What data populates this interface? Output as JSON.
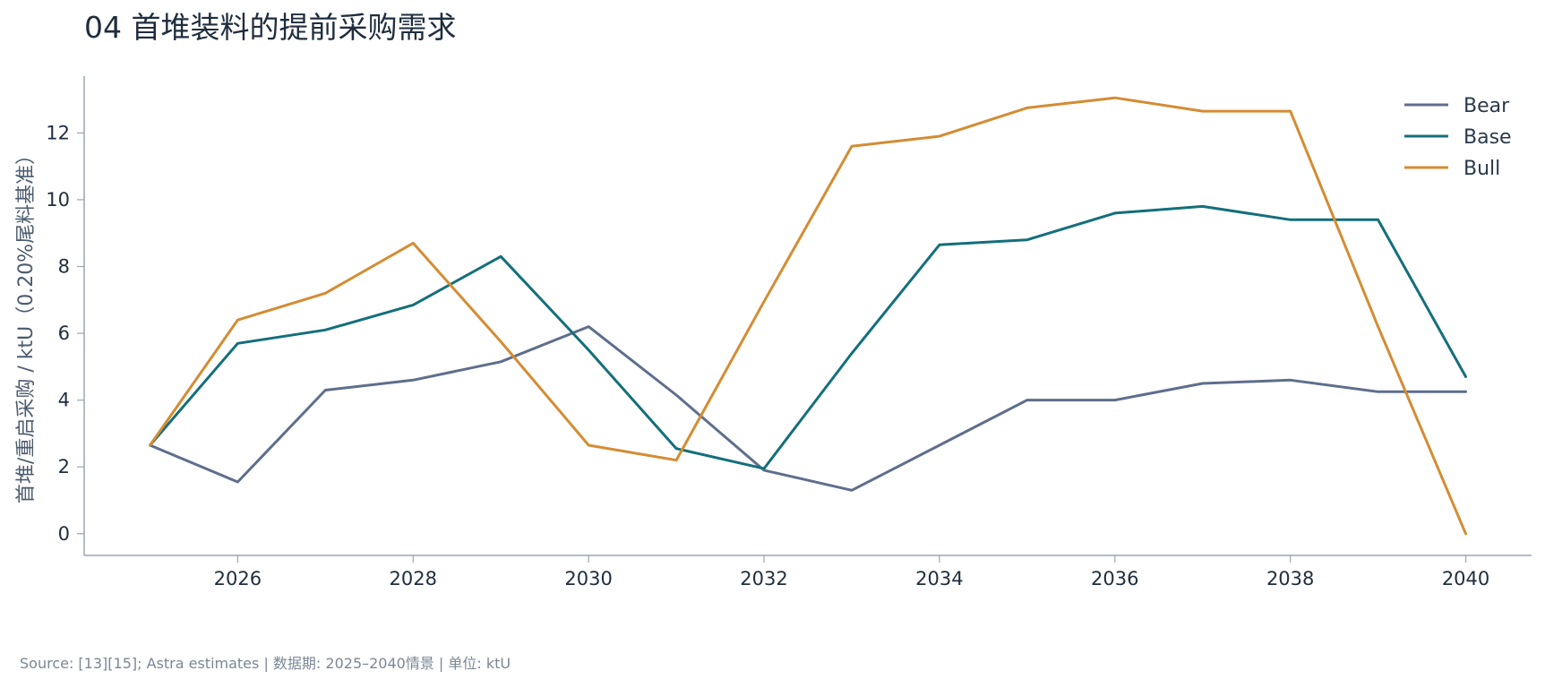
{
  "title": "04  首堆装料的提前采购需求",
  "source": "Source: [13][15]; Astra estimates | 数据期: 2025–2040情景 | 单位: ktU",
  "chart_data": {
    "type": "line",
    "title": "04  首堆装料的提前采购需求",
    "xlabel": "",
    "ylabel": "首堆/重启采购 / ktU（0.20%尾料基准）",
    "x": [
      2025,
      2026,
      2027,
      2028,
      2029,
      2030,
      2031,
      2032,
      2033,
      2034,
      2035,
      2036,
      2037,
      2038,
      2039,
      2040
    ],
    "xlim": [
      2024.25,
      2040.75
    ],
    "ylim": [
      -0.65,
      13.7
    ],
    "xticks": [
      "2026",
      "2028",
      "2030",
      "2032",
      "2034",
      "2036",
      "2038",
      "2040"
    ],
    "xtick_values": [
      2026,
      2028,
      2030,
      2032,
      2034,
      2036,
      2038,
      2040
    ],
    "yticks": [
      "0",
      "2",
      "4",
      "6",
      "8",
      "10",
      "12"
    ],
    "ytick_values": [
      0,
      2,
      4,
      6,
      8,
      10,
      12
    ],
    "grid": false,
    "legend_position": "top-right",
    "series": [
      {
        "name": "Bear",
        "color": "#5e6e8c",
        "values": [
          2.65,
          1.55,
          4.3,
          4.6,
          5.15,
          6.2,
          4.15,
          1.9,
          1.3,
          2.65,
          4.0,
          4.0,
          4.5,
          4.6,
          4.25,
          4.25
        ]
      },
      {
        "name": "Base",
        "color": "#136f7b",
        "values": [
          2.65,
          5.7,
          6.1,
          6.85,
          8.3,
          5.5,
          2.55,
          1.95,
          5.4,
          8.65,
          8.8,
          9.6,
          9.8,
          9.4,
          9.4,
          4.7
        ]
      },
      {
        "name": "Bull",
        "color": "#d48c33",
        "values": [
          2.65,
          6.4,
          7.2,
          8.7,
          5.75,
          2.65,
          2.2,
          6.95,
          11.6,
          11.9,
          12.75,
          13.05,
          12.65,
          12.65,
          6.2,
          0.0
        ]
      }
    ]
  }
}
